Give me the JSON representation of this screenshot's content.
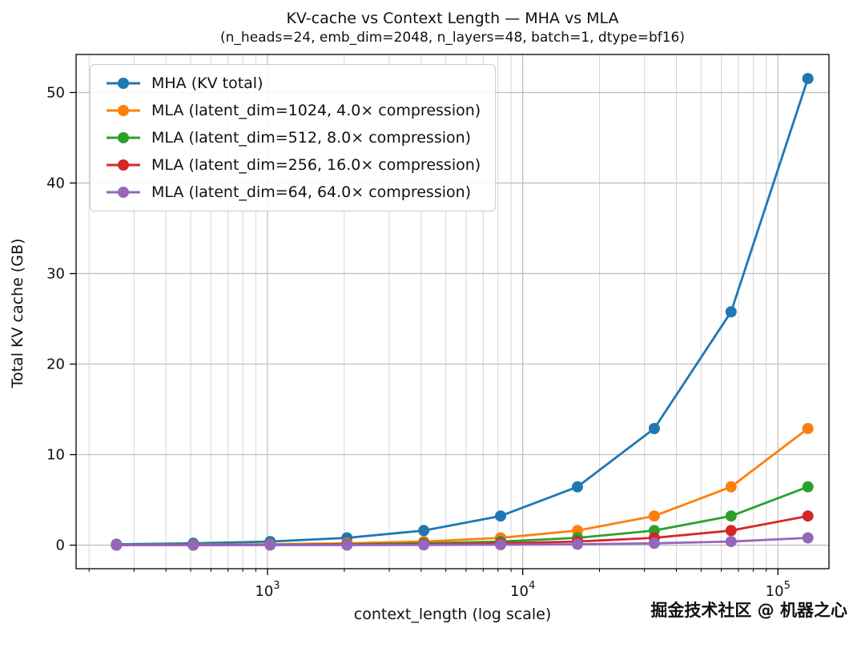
{
  "title": "KV-cache vs Context Length — MHA vs MLA",
  "subtitle": "(n_heads=24, emb_dim=2048, n_layers=48, batch=1, dtype=bf16)",
  "watermark": "掘金技术社区 @ 机器之心",
  "chart_data": {
    "type": "line",
    "x": [
      256,
      512,
      1024,
      2048,
      4096,
      8192,
      16384,
      32768,
      65536,
      131072
    ],
    "x_scale": "log",
    "xlabel": "context_length (log scale)",
    "ylabel": "Total KV cache (GB)",
    "xlim_log10": [
      2.25,
      5.2
    ],
    "ylim": [
      -2.6,
      54.2
    ],
    "x_major_ticks": [
      1000,
      10000,
      100000
    ],
    "y_ticks": [
      0,
      10,
      20,
      30,
      40,
      50
    ],
    "grid": true,
    "legend_position": "upper left",
    "series": [
      {
        "name": "MHA (KV total)",
        "color": "#1f77b4",
        "values": [
          0.101,
          0.201,
          0.403,
          0.805,
          1.611,
          3.221,
          6.442,
          12.885,
          25.77,
          51.54
        ]
      },
      {
        "name": "MLA (latent_dim=1024, 4.0× compression)",
        "color": "#ff7f0e",
        "values": [
          0.025,
          0.05,
          0.101,
          0.201,
          0.403,
          0.805,
          1.611,
          3.221,
          6.442,
          12.885
        ]
      },
      {
        "name": "MLA (latent_dim=512, 8.0× compression)",
        "color": "#2ca02c",
        "values": [
          0.013,
          0.025,
          0.05,
          0.101,
          0.201,
          0.403,
          0.805,
          1.611,
          3.221,
          6.442
        ]
      },
      {
        "name": "MLA (latent_dim=256, 16.0× compression)",
        "color": "#d62728",
        "values": [
          0.006,
          0.013,
          0.025,
          0.05,
          0.101,
          0.201,
          0.403,
          0.805,
          1.611,
          3.221
        ]
      },
      {
        "name": "MLA (latent_dim=64, 64.0× compression)",
        "color": "#9467bd",
        "values": [
          0.002,
          0.003,
          0.006,
          0.013,
          0.025,
          0.05,
          0.101,
          0.201,
          0.403,
          0.805
        ]
      }
    ]
  }
}
